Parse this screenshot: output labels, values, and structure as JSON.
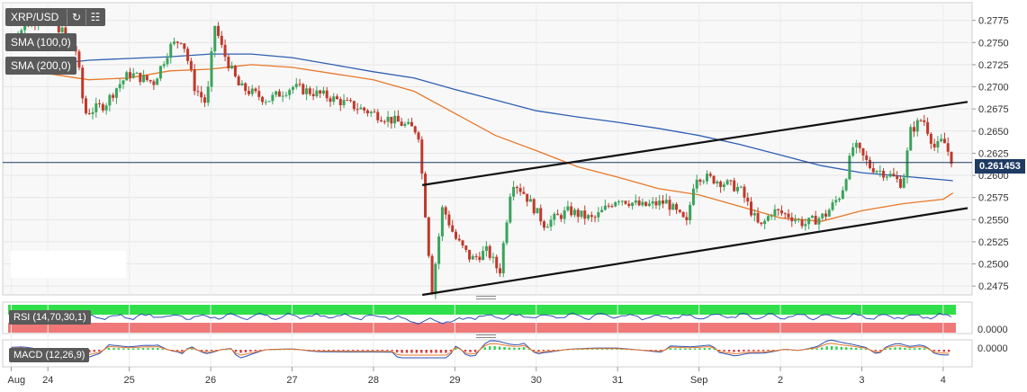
{
  "symbol": "XRP/USD",
  "overlays": [
    {
      "label": "SMA (100,0)",
      "color": "#e8782a"
    },
    {
      "label": "SMA (200,0)",
      "color": "#2f5fb3"
    }
  ],
  "current_price": "0.261453",
  "rsi": {
    "label": "RSI (14,70,30,1)",
    "axis_label": "0.0000"
  },
  "macd": {
    "label": "MACD (12,26,9)",
    "axis_label": "0.0000"
  },
  "icons": [
    "refresh-icon",
    "chart-settings-icon"
  ],
  "colors": {
    "up": "#3aa35c",
    "down": "#c0392b",
    "sma100": "#e8782a",
    "sma200": "#2f5fb3",
    "price_line": "#1f3a63"
  },
  "chart_data": {
    "type": "candlestick",
    "title": "XRP/USD",
    "ylim": [
      0.2465,
      0.2795
    ],
    "y_ticks": [
      "0.2775",
      "0.2750",
      "0.2725",
      "0.2700",
      "0.2675",
      "0.2650",
      "0.2625",
      "0.2600",
      "0.2575",
      "0.2550",
      "0.2525",
      "0.2500",
      "0.2475"
    ],
    "x_tick_labels": [
      "Aug",
      "24",
      "25",
      "26",
      "27",
      "28",
      "29",
      "30",
      "31",
      "Sep",
      "2",
      "3",
      "4"
    ],
    "x_tick_days": [
      23.55,
      24,
      25,
      26,
      27,
      28,
      29,
      30,
      31,
      32,
      33,
      34,
      35
    ],
    "xlim": [
      23.5,
      35.3
    ],
    "close_path": [
      [
        23.55,
        0.2755
      ],
      [
        23.8,
        0.2775
      ],
      [
        24.0,
        0.278
      ],
      [
        24.2,
        0.276
      ],
      [
        24.35,
        0.274
      ],
      [
        24.45,
        0.267
      ],
      [
        24.7,
        0.268
      ],
      [
        24.85,
        0.27
      ],
      [
        25.0,
        0.2715
      ],
      [
        25.3,
        0.2705
      ],
      [
        25.5,
        0.2745
      ],
      [
        25.65,
        0.2755
      ],
      [
        25.8,
        0.27
      ],
      [
        25.95,
        0.268
      ],
      [
        26.05,
        0.277
      ],
      [
        26.15,
        0.274
      ],
      [
        26.35,
        0.27
      ],
      [
        26.7,
        0.2685
      ],
      [
        27.0,
        0.27
      ],
      [
        27.4,
        0.269
      ],
      [
        27.7,
        0.268
      ],
      [
        28.0,
        0.267
      ],
      [
        28.3,
        0.266
      ],
      [
        28.55,
        0.265
      ],
      [
        28.72,
        0.247
      ],
      [
        28.85,
        0.2565
      ],
      [
        29.0,
        0.253
      ],
      [
        29.2,
        0.2505
      ],
      [
        29.4,
        0.2515
      ],
      [
        29.55,
        0.249
      ],
      [
        29.7,
        0.2595
      ],
      [
        29.85,
        0.258
      ],
      [
        30.1,
        0.2545
      ],
      [
        30.4,
        0.256
      ],
      [
        30.7,
        0.255
      ],
      [
        31.0,
        0.2575
      ],
      [
        31.3,
        0.2565
      ],
      [
        31.6,
        0.257
      ],
      [
        31.85,
        0.2545
      ],
      [
        31.95,
        0.26
      ],
      [
        32.2,
        0.2595
      ],
      [
        32.5,
        0.2585
      ],
      [
        32.75,
        0.254
      ],
      [
        32.9,
        0.256
      ],
      [
        33.1,
        0.2555
      ],
      [
        33.3,
        0.2545
      ],
      [
        33.55,
        0.2555
      ],
      [
        33.75,
        0.258
      ],
      [
        33.9,
        0.2635
      ],
      [
        34.1,
        0.261
      ],
      [
        34.35,
        0.26
      ],
      [
        34.5,
        0.259
      ],
      [
        34.6,
        0.265
      ],
      [
        34.75,
        0.2665
      ],
      [
        34.9,
        0.263
      ],
      [
        35.0,
        0.264
      ],
      [
        35.12,
        0.2614
      ]
    ],
    "sma100": [
      [
        23.55,
        0.2725
      ],
      [
        24.0,
        0.2715
      ],
      [
        24.5,
        0.2708
      ],
      [
        25.0,
        0.271
      ],
      [
        25.5,
        0.2718
      ],
      [
        26.0,
        0.272
      ],
      [
        26.5,
        0.2725
      ],
      [
        27.0,
        0.2722
      ],
      [
        27.5,
        0.2715
      ],
      [
        28.0,
        0.2708
      ],
      [
        28.5,
        0.2695
      ],
      [
        29.0,
        0.267
      ],
      [
        29.5,
        0.2645
      ],
      [
        30.0,
        0.2628
      ],
      [
        30.5,
        0.261
      ],
      [
        31.0,
        0.2598
      ],
      [
        31.5,
        0.2585
      ],
      [
        32.0,
        0.2578
      ],
      [
        32.5,
        0.2565
      ],
      [
        33.0,
        0.2552
      ],
      [
        33.5,
        0.2548
      ],
      [
        34.0,
        0.256
      ],
      [
        34.5,
        0.2568
      ],
      [
        35.0,
        0.2573
      ],
      [
        35.12,
        0.258
      ]
    ],
    "sma200": [
      [
        23.55,
        0.2722
      ],
      [
        24.0,
        0.2725
      ],
      [
        24.5,
        0.273
      ],
      [
        25.0,
        0.2732
      ],
      [
        25.5,
        0.2734
      ],
      [
        26.0,
        0.2737
      ],
      [
        26.5,
        0.2737
      ],
      [
        27.0,
        0.2733
      ],
      [
        27.5,
        0.2725
      ],
      [
        28.0,
        0.2717
      ],
      [
        28.5,
        0.271
      ],
      [
        29.0,
        0.2697
      ],
      [
        29.5,
        0.2685
      ],
      [
        30.0,
        0.2673
      ],
      [
        30.5,
        0.2666
      ],
      [
        31.0,
        0.266
      ],
      [
        31.5,
        0.2653
      ],
      [
        32.0,
        0.2645
      ],
      [
        32.5,
        0.2635
      ],
      [
        33.0,
        0.2623
      ],
      [
        33.5,
        0.2611
      ],
      [
        34.0,
        0.2603
      ],
      [
        34.5,
        0.2599
      ],
      [
        35.0,
        0.2595
      ],
      [
        35.12,
        0.2594
      ]
    ],
    "trendlines": [
      {
        "name": "upper-channel",
        "from": [
          28.6,
          0.2589
        ],
        "to": [
          35.3,
          0.2683
        ]
      },
      {
        "name": "lower-channel",
        "from": [
          28.6,
          0.2465
        ],
        "to": [
          35.3,
          0.2563
        ]
      }
    ],
    "grid": true,
    "legend": "top-left"
  }
}
